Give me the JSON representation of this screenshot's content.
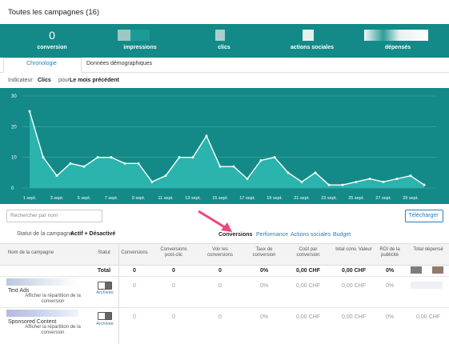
{
  "header": {
    "title": "Toutes les campagnes (16)"
  },
  "metrics": [
    {
      "value": "0",
      "label": "conversion"
    },
    {
      "label": "impressions"
    },
    {
      "label": "clics"
    },
    {
      "label": "actions sociales"
    },
    {
      "label": "dépensés"
    }
  ],
  "tabs": [
    "Chronologie",
    "Données démographiques"
  ],
  "indicator": {
    "label": "Indicateur",
    "metric": "Clics",
    "for": "pour",
    "period": "Le mois précédent"
  },
  "chart_data": {
    "type": "area",
    "categories": [
      "1 sept.",
      null,
      "3 sept.",
      null,
      "5 sept.",
      null,
      "7 sept.",
      null,
      "9 sept.",
      null,
      "11 sept.",
      null,
      "13 sept.",
      null,
      "15 sept.",
      null,
      "17 sept.",
      null,
      "19 sept.",
      null,
      "21 sept.",
      null,
      "23 sept.",
      null,
      "25 sept.",
      null,
      "27 sept.",
      null,
      "29 sept.",
      null
    ],
    "values": [
      25,
      10,
      4,
      8,
      7,
      10,
      10,
      8,
      8,
      2,
      4,
      10,
      10,
      17,
      7,
      7,
      3,
      9,
      10,
      5,
      2,
      5,
      1,
      1,
      2,
      3,
      2,
      3,
      4,
      1
    ],
    "ylim": [
      0,
      30
    ],
    "yticks": [
      0,
      10,
      20,
      30
    ],
    "color": "#ffffff",
    "area_color": "#2bb3ad",
    "grid": true
  },
  "search": {
    "placeholder": "Rechercher par nom"
  },
  "download": "Télécharger",
  "status_filter": {
    "label": "Statut de la campagne :",
    "value": "Actif + Désactivé"
  },
  "views": [
    "Conversions",
    "Performance",
    "Actions sociales",
    "Budget"
  ],
  "table": {
    "columns": [
      "Nom de la campagne",
      "Statut",
      "Conversions",
      "Conversions post-clic",
      "Voir les conversions",
      "Taux de conversion",
      "Coût par conversion",
      "total conv. Valeur",
      "ROI de la publicité",
      "Total dépensé"
    ],
    "total": {
      "label": "Total",
      "cells": [
        "0",
        "0",
        "0",
        "0%",
        "0,00 CHF",
        "0,00 CHF",
        "0%"
      ]
    },
    "rows": [
      {
        "name": "Text Ads",
        "status": "Archivée",
        "link": "Afficher la répartition de la conversion",
        "cells": [
          "0",
          "0",
          "0",
          "0%",
          "0,00 CHF",
          "0,00 CHF",
          "0%"
        ]
      },
      {
        "name": "Sponsored Content",
        "status": "Archivée",
        "link": "Afficher la répartition de la conversion",
        "cells": [
          "0",
          "0",
          "0",
          "0%",
          "0,00 CHF",
          "0,00 CHF",
          "0%",
          "0,00 CHF"
        ]
      }
    ]
  }
}
